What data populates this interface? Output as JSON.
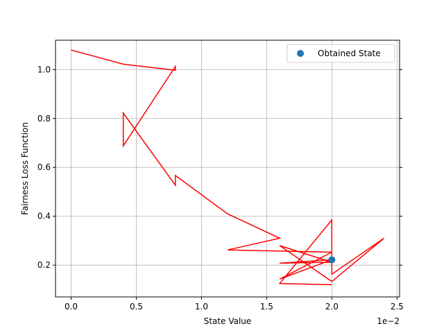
{
  "chart_data": {
    "type": "line",
    "title": "",
    "xlabel": "State Value",
    "ylabel": "Fairness Loss Function",
    "x_offset_label": "1e−2",
    "xlim": [
      -0.0012,
      0.0252
    ],
    "ylim": [
      0.07,
      1.12
    ],
    "grid": true,
    "x_ticks": [
      0,
      0.005,
      0.01,
      0.015,
      0.02,
      0.025
    ],
    "x_tick_labels": [
      "0.0",
      "0.5",
      "1.0",
      "1.5",
      "2.0",
      "2.5"
    ],
    "y_ticks": [
      0.2,
      0.4,
      0.6,
      0.8,
      1.0
    ],
    "y_tick_labels": [
      "0.2",
      "0.4",
      "0.6",
      "0.8",
      "1.0"
    ],
    "legend": {
      "position": "top-right",
      "entries": [
        "Obtained State"
      ]
    },
    "colors": {
      "trajectory": "#ff0000",
      "obtained_state": "#1f77b4"
    },
    "series": [
      {
        "kind": "line",
        "x": [
          0.0,
          0.004,
          0.008,
          0.008,
          0.004,
          0.004,
          0.008,
          0.008,
          0.012,
          0.016,
          0.012,
          0.02,
          0.016,
          0.02,
          0.016,
          0.02,
          0.016,
          0.02,
          0.024,
          0.02,
          0.02,
          0.016,
          0.02
        ],
        "y": [
          1.08,
          1.022,
          0.997,
          1.013,
          0.688,
          0.822,
          0.527,
          0.567,
          0.41,
          0.31,
          0.262,
          0.253,
          0.143,
          0.222,
          0.208,
          0.212,
          0.28,
          0.133,
          0.31,
          0.163,
          0.385,
          0.125,
          0.12
        ]
      },
      {
        "name": "Obtained State",
        "kind": "scatter",
        "x": [
          0.02
        ],
        "y": [
          0.222
        ]
      }
    ]
  }
}
